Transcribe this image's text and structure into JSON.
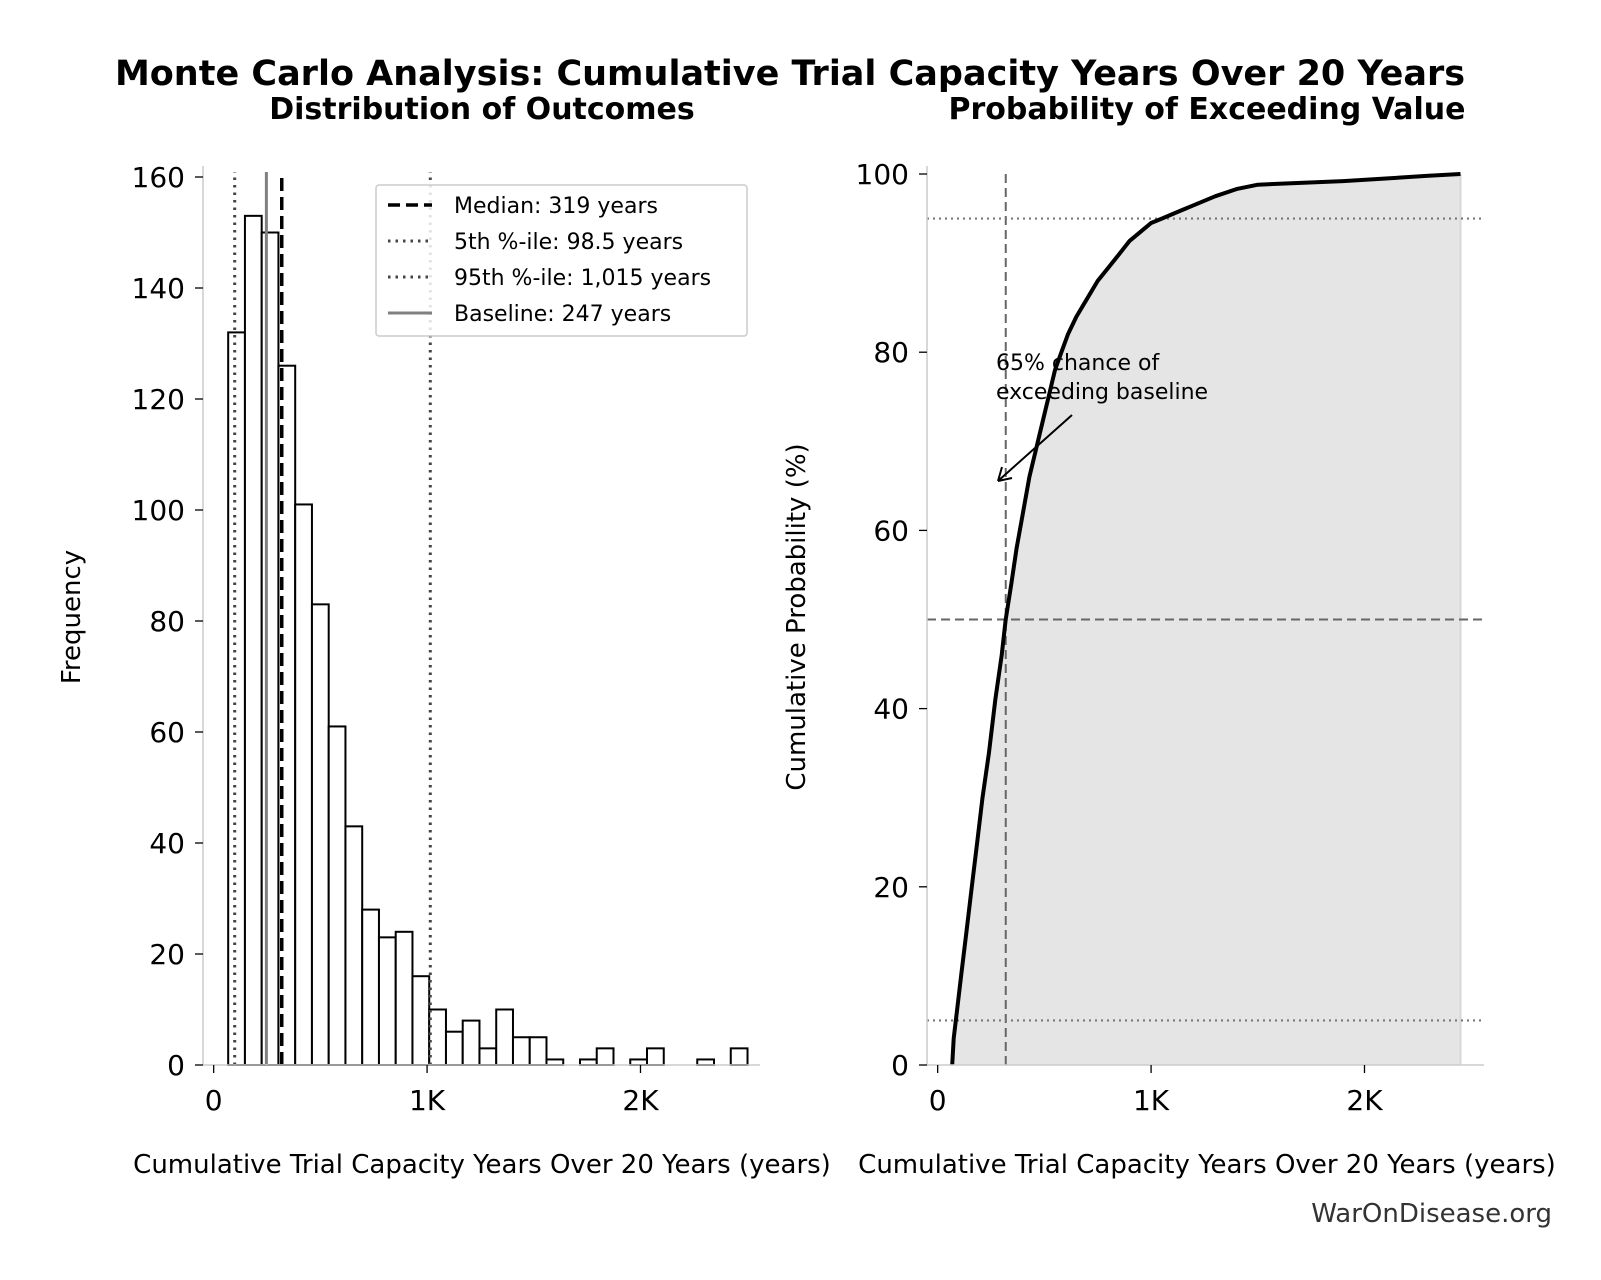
{
  "title": "Monte Carlo Analysis: Cumulative Trial Capacity Years Over 20 Years",
  "credit": "WarOnDisease.org",
  "colors": {
    "bar_fill": "#ffffff",
    "bar_edge": "#000000",
    "median": "#000000",
    "percentile": "#444444",
    "baseline": "#808080",
    "cdf_line": "#000000",
    "cdf_fill": "#e5e5e5",
    "ref_line": "#666666"
  },
  "chart_data": [
    {
      "type": "bar",
      "title": "Distribution of Outcomes",
      "xlabel": "Cumulative Trial Capacity Years Over 20 Years (years)",
      "ylabel": "Frequency",
      "xlim": [
        -50,
        2560
      ],
      "ylim": [
        0,
        160
      ],
      "xticks": [
        {
          "value": 0,
          "label": "0"
        },
        {
          "value": 1000,
          "label": "1K"
        },
        {
          "value": 2000,
          "label": "2K"
        }
      ],
      "yticks": [
        {
          "value": 0,
          "label": "0"
        },
        {
          "value": 20,
          "label": "20"
        },
        {
          "value": 40,
          "label": "40"
        },
        {
          "value": 60,
          "label": "60"
        },
        {
          "value": 80,
          "label": "80"
        },
        {
          "value": 100,
          "label": "100"
        },
        {
          "value": 120,
          "label": "120"
        },
        {
          "value": 140,
          "label": "140"
        },
        {
          "value": 160,
          "label": "160"
        }
      ],
      "bin_start": 68,
      "bin_width": 78.5,
      "values": [
        132,
        153,
        150,
        126,
        101,
        83,
        61,
        43,
        28,
        23,
        24,
        16,
        10,
        6,
        8,
        3,
        10,
        5,
        5,
        1,
        0,
        1,
        3,
        0,
        1,
        3,
        0,
        0,
        1,
        0,
        3
      ],
      "reference_lines": [
        {
          "label": "Median: 319 years",
          "value": 319,
          "style": "dashed",
          "color": "#000000"
        },
        {
          "label": "5th %-ile: 98.5 years",
          "value": 98.5,
          "style": "dotted",
          "color": "#444444"
        },
        {
          "label": "95th %-ile: 1,015 years",
          "value": 1015,
          "style": "dotted",
          "color": "#444444"
        },
        {
          "label": "Baseline: 247 years",
          "value": 247,
          "style": "solid",
          "color": "#808080"
        }
      ],
      "legend_position": "upper right",
      "grid": false
    },
    {
      "type": "line",
      "title": "Probability of Exceeding Value",
      "xlabel": "Cumulative Trial Capacity Years Over 20 Years (years)",
      "ylabel": "Cumulative Probability (%)",
      "xlim": [
        -50,
        2560
      ],
      "ylim": [
        0,
        100
      ],
      "xticks": [
        {
          "value": 0,
          "label": "0"
        },
        {
          "value": 1000,
          "label": "1K"
        },
        {
          "value": 2000,
          "label": "2K"
        }
      ],
      "yticks": [
        {
          "value": 0,
          "label": "0"
        },
        {
          "value": 20,
          "label": "20"
        },
        {
          "value": 40,
          "label": "40"
        },
        {
          "value": 60,
          "label": "60"
        },
        {
          "value": 80,
          "label": "80"
        },
        {
          "value": 100,
          "label": "100"
        }
      ],
      "x": [
        68,
        75,
        90,
        110,
        135,
        160,
        185,
        210,
        240,
        270,
        300,
        319,
        345,
        370,
        400,
        430,
        460,
        490,
        520,
        550,
        580,
        610,
        650,
        700,
        750,
        800,
        850,
        900,
        950,
        1000,
        1050,
        1100,
        1150,
        1200,
        1300,
        1400,
        1500,
        1700,
        1900,
        2100,
        2300,
        2450
      ],
      "values": [
        0,
        3,
        6,
        10,
        15,
        20,
        25,
        30,
        35,
        41,
        46,
        50,
        54,
        58,
        62,
        66,
        69,
        72,
        75,
        78,
        80,
        82,
        84,
        86,
        88,
        89.5,
        91,
        92.5,
        93.5,
        94.5,
        95,
        95.5,
        96,
        96.5,
        97.5,
        98.3,
        98.8,
        99.0,
        99.2,
        99.5,
        99.8,
        100
      ],
      "reference_lines": [
        {
          "axis": "x",
          "value": 319,
          "style": "dashed"
        },
        {
          "axis": "y",
          "value": 50,
          "style": "dashed"
        },
        {
          "axis": "y",
          "value": 95,
          "style": "dotted"
        },
        {
          "axis": "y",
          "value": 5,
          "style": "dotted"
        }
      ],
      "annotation": {
        "lines": [
          "65% chance of",
          "exceeding baseline"
        ]
      },
      "grid": false
    }
  ]
}
